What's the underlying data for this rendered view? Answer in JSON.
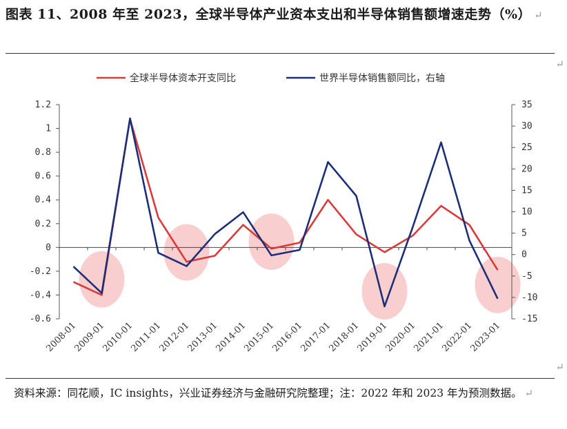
{
  "figure": {
    "title": "图表 11、2008 年至 2023，全球半导体产业资本支出和半导体销售额增速走势（%）",
    "return_mark": "↵",
    "source": "资料来源：同花顺，IC insights，兴业证券经济与金融研究院整理；注：2022 年和 2023 年为预测数据。"
  },
  "chart_data": {
    "type": "line",
    "categories": [
      "2008-01",
      "2009-01",
      "2010-01",
      "2011-01",
      "2012-01",
      "2013-01",
      "2014-01",
      "2015-01",
      "2016-01",
      "2017-01",
      "2018-01",
      "2019-01",
      "2020-01",
      "2021-01",
      "2022-01",
      "2023-01"
    ],
    "series": [
      {
        "name": "全球半导体资本开支同比",
        "axis": "left",
        "color": "#d93a3a",
        "values": [
          -0.29,
          -0.4,
          1.08,
          0.25,
          -0.12,
          -0.07,
          0.19,
          -0.01,
          0.04,
          0.4,
          0.11,
          -0.04,
          0.1,
          0.35,
          0.19,
          -0.19
        ]
      },
      {
        "name": "世界半导体销售额同比，右轴",
        "axis": "right",
        "color": "#1c2e78",
        "values": [
          -2.8,
          -9.0,
          31.8,
          0.4,
          -2.7,
          4.8,
          9.9,
          -0.2,
          1.1,
          21.6,
          13.7,
          -12.1,
          6.5,
          26.2,
          3.3,
          -10.3
        ]
      }
    ],
    "left_axis": {
      "ylim": [
        -0.6,
        1.2
      ],
      "ticks": [
        "1.2",
        "1",
        "0.8",
        "0.6",
        "0.4",
        "0.2",
        "0",
        "-0.2",
        "-0.4",
        "-0.6"
      ]
    },
    "right_axis": {
      "ylim": [
        -15,
        35
      ],
      "ticks": [
        "35",
        "30",
        "25",
        "20",
        "15",
        "10",
        "5",
        "0",
        "-5",
        "-10",
        "-15"
      ]
    },
    "highlight_categories": [
      "2009-01",
      "2012-01",
      "2015-01",
      "2019-01",
      "2023-01"
    ],
    "highlight_color": "#f8c6c6",
    "legend_position": "top",
    "grid": false
  }
}
